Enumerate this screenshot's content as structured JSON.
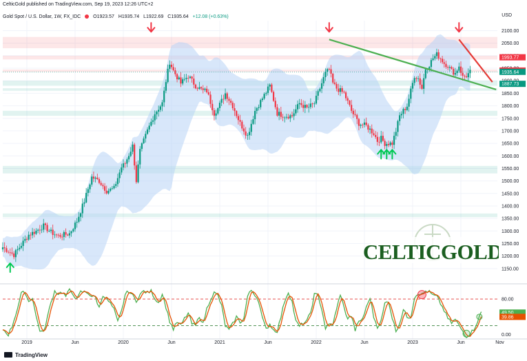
{
  "header": {
    "published": "CelticGold published on TradingView.com, Sep 19, 2023 12:26 UTC+2",
    "symbol": "Gold Spot / U.S. Dollar, 1W, FX_IDC",
    "open": "O1923.57",
    "high": "H1935.74",
    "low": "L1922.69",
    "close": "C1935.64",
    "change": "+12.08 (+0.63%)"
  },
  "currency": "USD",
  "footer": {
    "brand": "TradingView"
  },
  "logo": {
    "text": "CELTICGOLD"
  },
  "colors": {
    "up": "#089981",
    "down": "#f23645",
    "band": "#b8d4f5",
    "trend_support": "#4caf50",
    "trend_resist": "#e53935",
    "stoch_k": "#4caf50",
    "stoch_d": "#e65100",
    "level_up": "#089981",
    "level_down": "#f23645"
  },
  "chart_data": {
    "type": "candlestick",
    "price_axis": {
      "ylim": [
        1100,
        2140
      ],
      "ticks": [
        1150,
        1200,
        1250,
        1300,
        1350,
        1400,
        1450,
        1500,
        1550,
        1600,
        1650,
        1700,
        1750,
        1800,
        1850,
        1900,
        1950,
        2000,
        2050,
        2100
      ],
      "tick_labels": [
        "1150.00",
        "1200.00",
        "1250.00",
        "1300.00",
        "1350.00",
        "1400.00",
        "1450.00",
        "1500.00",
        "1550.00",
        "1600.00",
        "1650.00",
        "1700.00",
        "1750.00",
        "1800.00",
        "1850.00",
        "1900.00",
        "1950.00",
        "2000.00",
        "2050.00",
        "2100.00"
      ],
      "price_labels": [
        {
          "value": 1993.77,
          "text": "1993.77",
          "color": "#f23645"
        },
        {
          "value": 1940.75,
          "text": "1940.75",
          "color": "#f23645"
        },
        {
          "value": 1935.64,
          "text": "1935.64",
          "color": "#089981"
        },
        {
          "value": 1887.73,
          "text": "1887.73",
          "color": "#089981"
        }
      ]
    },
    "time_axis": {
      "start": 0,
      "end": 260,
      "ticks": [
        {
          "week": 13,
          "label": "2019"
        },
        {
          "week": 39,
          "label": "Jun"
        },
        {
          "week": 65,
          "label": "2020"
        },
        {
          "week": 91,
          "label": "Jun"
        },
        {
          "week": 117,
          "label": "2021"
        },
        {
          "week": 143,
          "label": "Jun"
        },
        {
          "week": 169,
          "label": "2022"
        },
        {
          "week": 195,
          "label": "Jun"
        },
        {
          "week": 221,
          "label": "2023"
        },
        {
          "week": 247,
          "label": "Jun"
        },
        {
          "week": 268,
          "label": "Nov"
        }
      ]
    },
    "keypoints": [
      [
        0,
        1235
      ],
      [
        6,
        1205
      ],
      [
        10,
        1245
      ],
      [
        14,
        1285
      ],
      [
        18,
        1300
      ],
      [
        22,
        1320
      ],
      [
        26,
        1295
      ],
      [
        30,
        1280
      ],
      [
        36,
        1290
      ],
      [
        40,
        1340
      ],
      [
        44,
        1420
      ],
      [
        48,
        1515
      ],
      [
        52,
        1500
      ],
      [
        56,
        1460
      ],
      [
        60,
        1470
      ],
      [
        64,
        1555
      ],
      [
        66,
        1570
      ],
      [
        70,
        1640
      ],
      [
        72,
        1500
      ],
      [
        74,
        1620
      ],
      [
        78,
        1700
      ],
      [
        82,
        1770
      ],
      [
        86,
        1810
      ],
      [
        88,
        1900
      ],
      [
        90,
        1975
      ],
      [
        92,
        1940
      ],
      [
        96,
        1890
      ],
      [
        100,
        1920
      ],
      [
        104,
        1880
      ],
      [
        108,
        1860
      ],
      [
        110,
        1860
      ],
      [
        114,
        1770
      ],
      [
        116,
        1790
      ],
      [
        120,
        1850
      ],
      [
        124,
        1800
      ],
      [
        128,
        1730
      ],
      [
        132,
        1680
      ],
      [
        136,
        1780
      ],
      [
        140,
        1830
      ],
      [
        144,
        1880
      ],
      [
        148,
        1770
      ],
      [
        152,
        1760
      ],
      [
        156,
        1760
      ],
      [
        160,
        1810
      ],
      [
        164,
        1790
      ],
      [
        168,
        1810
      ],
      [
        170,
        1850
      ],
      [
        174,
        1930
      ],
      [
        176,
        1945
      ],
      [
        178,
        1890
      ],
      [
        180,
        1870
      ],
      [
        184,
        1850
      ],
      [
        188,
        1780
      ],
      [
        192,
        1730
      ],
      [
        196,
        1720
      ],
      [
        200,
        1690
      ],
      [
        202,
        1660
      ],
      [
        204,
        1670
      ],
      [
        206,
        1650
      ],
      [
        210,
        1650
      ],
      [
        212,
        1700
      ],
      [
        214,
        1760
      ],
      [
        218,
        1800
      ],
      [
        220,
        1860
      ],
      [
        222,
        1920
      ],
      [
        224,
        1910
      ],
      [
        226,
        1870
      ],
      [
        228,
        1950
      ],
      [
        230,
        1965
      ],
      [
        232,
        1990
      ],
      [
        234,
        2005
      ],
      [
        236,
        1990
      ],
      [
        238,
        1970
      ],
      [
        240,
        1960
      ],
      [
        242,
        1940
      ],
      [
        244,
        1930
      ],
      [
        246,
        1960
      ],
      [
        248,
        1915
      ],
      [
        250,
        1920
      ],
      [
        252,
        1935
      ]
    ],
    "bands": [
      {
        "from": 2030,
        "to": 2075,
        "color": "#f23645"
      },
      {
        "from": 1985,
        "to": 2000,
        "color": "#f23645"
      },
      {
        "from": 1935,
        "to": 1945,
        "color": "#f23645"
      },
      {
        "from": 1880,
        "to": 1900,
        "color": "#089981"
      },
      {
        "from": 1860,
        "to": 1870,
        "color": "#089981"
      },
      {
        "from": 1760,
        "to": 1780,
        "color": "#089981"
      },
      {
        "from": 1530,
        "to": 1560,
        "color": "#089981"
      },
      {
        "from": 1355,
        "to": 1370,
        "color": "#089981"
      }
    ],
    "trendlines": [
      {
        "name": "support",
        "from": [
          176,
          2065
        ],
        "to": [
          266,
          1865
        ],
        "color": "#4caf50"
      },
      {
        "name": "resistance",
        "from": [
          246,
          2065
        ],
        "to": [
          264,
          1895
        ],
        "color": "#e53935"
      }
    ],
    "markers": [
      {
        "week": 80,
        "price": 2112,
        "dir": "down",
        "color": "#f23645"
      },
      {
        "week": 176,
        "price": 2112,
        "dir": "down",
        "color": "#f23645"
      },
      {
        "week": 246,
        "price": 2112,
        "dir": "down",
        "color": "#f23645"
      },
      {
        "week": 4,
        "price": 1155,
        "dir": "up",
        "color": "#00c853"
      },
      {
        "week": 204,
        "price": 1608,
        "dir": "up",
        "color": "#00c853"
      },
      {
        "week": 207,
        "price": 1608,
        "dir": "up",
        "color": "#00c853"
      },
      {
        "week": 210,
        "price": 1608,
        "dir": "up",
        "color": "#00c853"
      }
    ],
    "stochastic": {
      "ylim": [
        -10,
        105
      ],
      "levels": [
        80,
        20
      ],
      "tick_labels": [
        {
          "value": 80,
          "text": "80.00"
        },
        {
          "value": 0,
          "text": "0.00"
        }
      ],
      "k_label": {
        "value": 49.5,
        "text": "49.50"
      },
      "d_label": {
        "value": 39.86,
        "text": "39.86"
      },
      "k_keypoints": [
        [
          0,
          12
        ],
        [
          3,
          0
        ],
        [
          5,
          18
        ],
        [
          8,
          60
        ],
        [
          10,
          92
        ],
        [
          12,
          96
        ],
        [
          14,
          74
        ],
        [
          16,
          84
        ],
        [
          18,
          40
        ],
        [
          20,
          10
        ],
        [
          22,
          4
        ],
        [
          24,
          38
        ],
        [
          26,
          72
        ],
        [
          28,
          98
        ],
        [
          30,
          92
        ],
        [
          32,
          96
        ],
        [
          34,
          86
        ],
        [
          36,
          100
        ],
        [
          38,
          92
        ],
        [
          40,
          78
        ],
        [
          42,
          96
        ],
        [
          44,
          96
        ],
        [
          46,
          94
        ],
        [
          48,
          86
        ],
        [
          50,
          84
        ],
        [
          52,
          60
        ],
        [
          54,
          90
        ],
        [
          56,
          80
        ],
        [
          58,
          70
        ],
        [
          60,
          56
        ],
        [
          62,
          28
        ],
        [
          64,
          52
        ],
        [
          66,
          90
        ],
        [
          68,
          98
        ],
        [
          70,
          88
        ],
        [
          72,
          76
        ],
        [
          74,
          90
        ],
        [
          76,
          98
        ],
        [
          78,
          94
        ],
        [
          80,
          98
        ],
        [
          82,
          82
        ],
        [
          84,
          72
        ],
        [
          86,
          92
        ],
        [
          88,
          62
        ],
        [
          90,
          30
        ],
        [
          92,
          12
        ],
        [
          94,
          28
        ],
        [
          96,
          20
        ],
        [
          98,
          36
        ],
        [
          100,
          48
        ],
        [
          102,
          24
        ],
        [
          104,
          20
        ],
        [
          106,
          42
        ],
        [
          108,
          24
        ],
        [
          110,
          58
        ],
        [
          112,
          80
        ],
        [
          114,
          94
        ],
        [
          116,
          88
        ],
        [
          118,
          64
        ],
        [
          120,
          20
        ],
        [
          122,
          10
        ],
        [
          124,
          24
        ],
        [
          126,
          40
        ],
        [
          128,
          28
        ],
        [
          130,
          36
        ],
        [
          132,
          86
        ],
        [
          134,
          100
        ],
        [
          136,
          90
        ],
        [
          138,
          76
        ],
        [
          140,
          36
        ],
        [
          142,
          12
        ],
        [
          144,
          24
        ],
        [
          146,
          10
        ],
        [
          148,
          8
        ],
        [
          150,
          40
        ],
        [
          152,
          76
        ],
        [
          154,
          96
        ],
        [
          156,
          74
        ],
        [
          158,
          30
        ],
        [
          160,
          18
        ],
        [
          162,
          26
        ],
        [
          164,
          30
        ],
        [
          166,
          50
        ],
        [
          168,
          90
        ],
        [
          170,
          88
        ],
        [
          172,
          58
        ],
        [
          174,
          14
        ],
        [
          176,
          22
        ],
        [
          178,
          24
        ],
        [
          180,
          56
        ],
        [
          182,
          92
        ],
        [
          184,
          60
        ],
        [
          186,
          36
        ],
        [
          188,
          42
        ],
        [
          190,
          10
        ],
        [
          192,
          28
        ],
        [
          194,
          36
        ],
        [
          196,
          60
        ],
        [
          198,
          84
        ],
        [
          200,
          40
        ],
        [
          202,
          18
        ],
        [
          204,
          30
        ],
        [
          206,
          70
        ],
        [
          208,
          76
        ],
        [
          210,
          38
        ],
        [
          212,
          8
        ],
        [
          214,
          26
        ],
        [
          216,
          56
        ],
        [
          218,
          40
        ],
        [
          220,
          40
        ],
        [
          222,
          84
        ],
        [
          224,
          94
        ],
        [
          226,
          90
        ],
        [
          228,
          98
        ],
        [
          230,
          96
        ],
        [
          232,
          88
        ],
        [
          234,
          86
        ],
        [
          236,
          70
        ],
        [
          238,
          54
        ],
        [
          240,
          36
        ],
        [
          242,
          26
        ],
        [
          244,
          34
        ],
        [
          246,
          20
        ],
        [
          248,
          8
        ],
        [
          250,
          -4
        ],
        [
          252,
          2
        ],
        [
          254,
          12
        ],
        [
          256,
          30
        ],
        [
          258,
          50
        ]
      ]
    },
    "logo_ring": true
  }
}
